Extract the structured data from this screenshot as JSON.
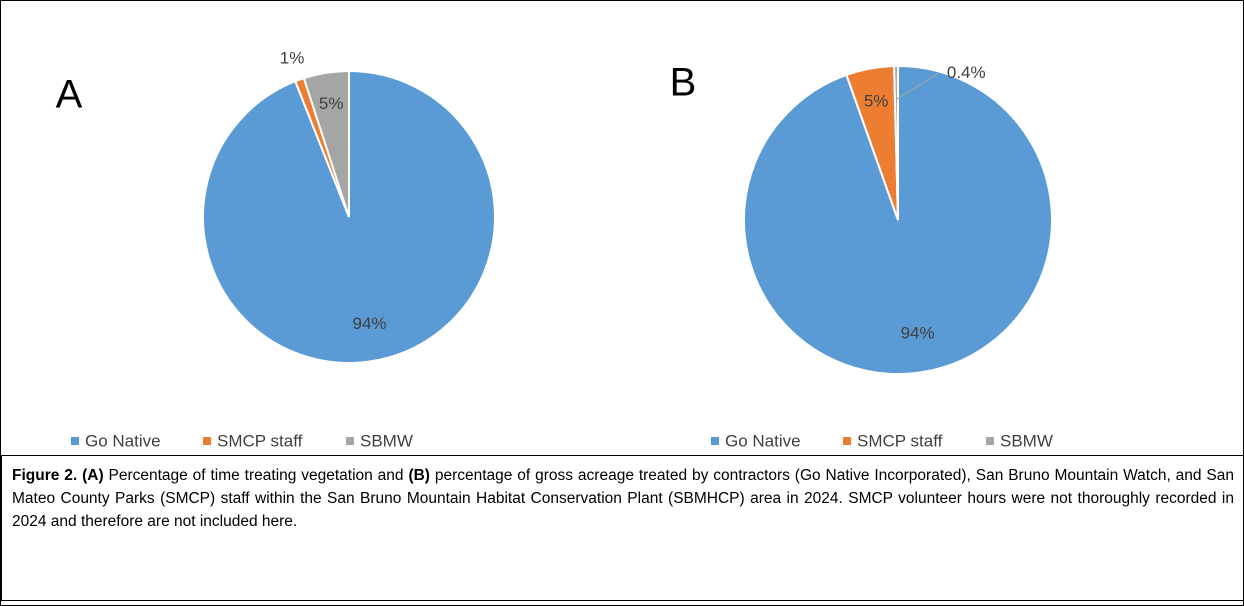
{
  "chart_data": [
    {
      "type": "pie",
      "title": "A",
      "categories": [
        "Go Native",
        "SMCP staff",
        "SBMW"
      ],
      "values": [
        94,
        1,
        5
      ],
      "value_labels": [
        "94%",
        "1%",
        "5%"
      ],
      "colors": [
        "#5b9bd5",
        "#ed7d31",
        "#a5a5a5"
      ],
      "legend": "bottom"
    },
    {
      "type": "pie",
      "title": "B",
      "categories": [
        "Go Native",
        "SMCP staff",
        "SBMW"
      ],
      "values": [
        94,
        5,
        0.4
      ],
      "value_labels": [
        "94%",
        "5%",
        "0.4%"
      ],
      "colors": [
        "#5b9bd5",
        "#ed7d31",
        "#a5a5a5"
      ],
      "legend": "bottom"
    }
  ],
  "caption": [
    {
      "text": "Figure 2.",
      "bold": true
    },
    {
      "text": " ",
      "bold": false
    },
    {
      "text": "(A)",
      "bold": true
    },
    {
      "text": " Percentage of time treating vegetation and ",
      "bold": false
    },
    {
      "text": "(B)",
      "bold": true
    },
    {
      "text": " percentage of gross acreage treated by contractors (Go Native Incorporated), San Bruno Mountain Watch, and San Mateo County Parks (SMCP) staff within the San Bruno Mountain Habitat Conservation Plant (SBMHCP) area in 2024. SMCP volunteer hours were not thoroughly recorded in 2024 and therefore are not included here.",
      "bold": false
    }
  ]
}
